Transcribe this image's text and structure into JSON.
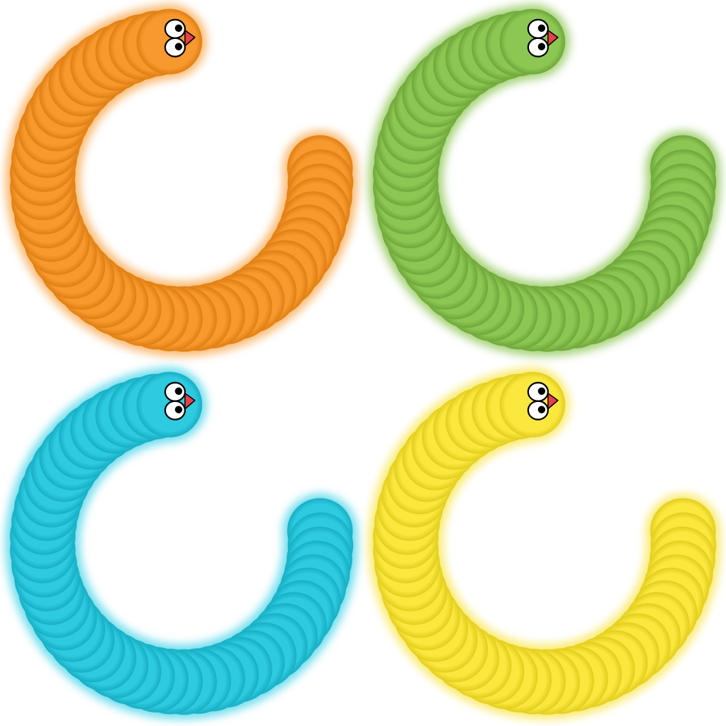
{
  "sprite_sheet": {
    "worms": [
      {
        "color_name": "orange",
        "body_color": "#F8992F",
        "shade_color": "#E07F12",
        "glow_color": "#F7A64A"
      },
      {
        "color_name": "green",
        "body_color": "#8CC653",
        "shade_color": "#6FA83A",
        "glow_color": "#8CC653"
      },
      {
        "color_name": "cyan",
        "body_color": "#2ECAE0",
        "shade_color": "#17AFC4",
        "glow_color": "#4AD4E8"
      },
      {
        "color_name": "yellow",
        "body_color": "#FBE83F",
        "shade_color": "#E3CE1E",
        "glow_color": "#F8E54A"
      }
    ],
    "face": {
      "eye_white": "#ffffff",
      "eye_outline": "#000000",
      "pupil_color": "#000000",
      "tongue_color": "#E8404A"
    }
  }
}
